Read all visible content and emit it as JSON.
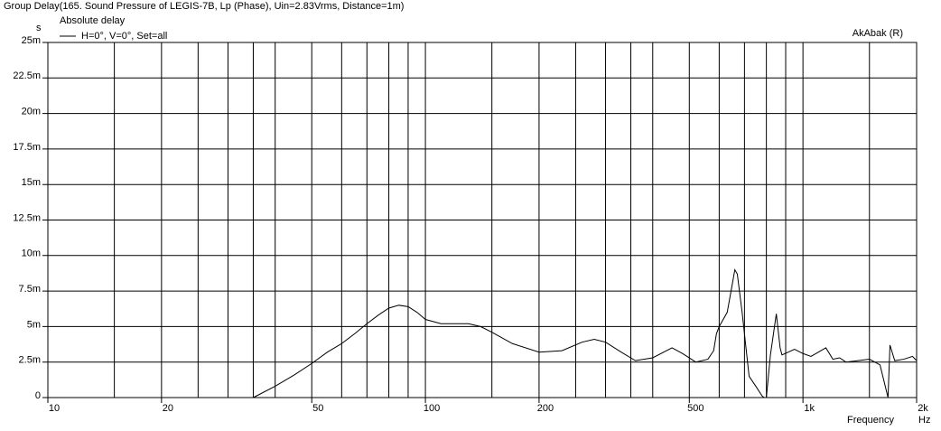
{
  "chart_data": {
    "type": "line",
    "title": "Group Delay(165. Sound Pressure of LEGIS-7B, Lp (Phase), Uin=2.83Vrms, Distance=1m)",
    "legend_title": "Absolute delay",
    "annotation": "AkAbak (R)",
    "y_unit": "s",
    "x_label": "Frequency",
    "x_unit": "Hz",
    "x_scale": "log",
    "grid": true,
    "xlim": [
      10,
      2000
    ],
    "ylim": [
      0,
      0.025
    ],
    "xticks": [
      10,
      20,
      50,
      100,
      200,
      500,
      {
        "value": 1000,
        "label": "1k"
      },
      {
        "value": 2000,
        "label": "2k"
      }
    ],
    "xgrid": [
      15,
      25,
      30,
      35,
      40,
      60,
      70,
      80,
      90,
      150,
      250,
      300,
      350,
      400,
      600,
      700,
      800,
      900,
      1500
    ],
    "yticks": [
      0,
      {
        "value": 0.0025,
        "label": "2.5m"
      },
      {
        "value": 0.005,
        "label": "5m"
      },
      {
        "value": 0.0075,
        "label": "7.5m"
      },
      {
        "value": 0.01,
        "label": "10m"
      },
      {
        "value": 0.0125,
        "label": "12.5m"
      },
      {
        "value": 0.015,
        "label": "15m"
      },
      {
        "value": 0.0175,
        "label": "17.5m"
      },
      {
        "value": 0.02,
        "label": "20m"
      },
      {
        "value": 0.0225,
        "label": "22.5m"
      },
      {
        "value": 0.025,
        "label": "25m"
      }
    ],
    "x": [
      35,
      40,
      45,
      50,
      55,
      60,
      65,
      70,
      75,
      80,
      85,
      90,
      95,
      100,
      110,
      120,
      130,
      140,
      150,
      170,
      200,
      230,
      260,
      280,
      300,
      330,
      360,
      400,
      450,
      480,
      520,
      560,
      580,
      590,
      600,
      630,
      650,
      660,
      670,
      690,
      720,
      750,
      780,
      790,
      800,
      820,
      850,
      870,
      880,
      950,
      1000,
      1050,
      1150,
      1200,
      1250,
      1300,
      1400,
      1500,
      1600,
      1680,
      1700,
      1750,
      1850,
      1950,
      2000
    ],
    "series": [
      {
        "name": "H=0°, V=0°, Set=all",
        "color": "#000000",
        "values": [
          0,
          0.0008,
          0.0016,
          0.0024,
          0.0032,
          0.0038,
          0.0045,
          0.0052,
          0.0058,
          0.0063,
          0.0065,
          0.0064,
          0.006,
          0.0055,
          0.0052,
          0.0052,
          0.0052,
          0.005,
          0.0046,
          0.0038,
          0.0032,
          0.0033,
          0.0039,
          0.0041,
          0.0039,
          0.0032,
          0.0026,
          0.0028,
          0.0035,
          0.0031,
          0.0025,
          0.0027,
          0.0033,
          0.0045,
          0.005,
          0.006,
          0.008,
          0.009,
          0.0087,
          0.006,
          0.0015,
          0.0008,
          0.0001,
          0,
          0,
          0.003,
          0.0059,
          0.0035,
          0.003,
          0.0034,
          0.0031,
          0.0029,
          0.0035,
          0.0027,
          0.0028,
          0.0025,
          0.0026,
          0.0027,
          0.0023,
          0,
          0.0037,
          0.0026,
          0.0027,
          0.0029,
          0.0026
        ]
      }
    ]
  }
}
